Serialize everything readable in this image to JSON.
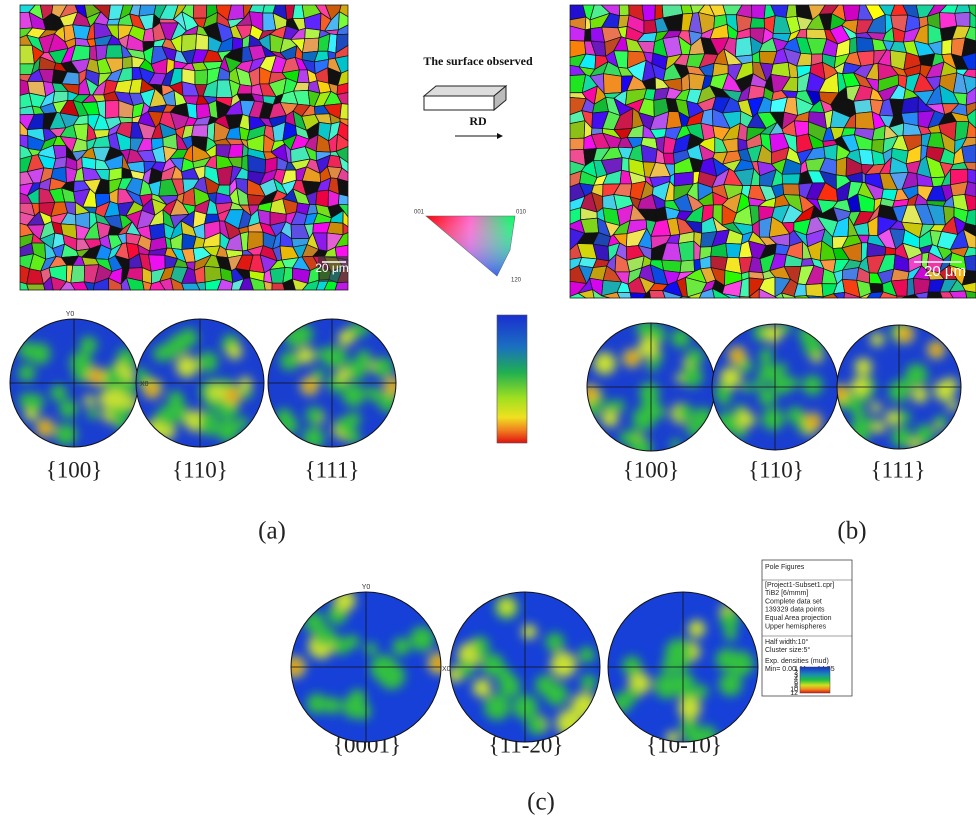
{
  "panel_a": {
    "surface_label": "The surface observed",
    "direction_label": "RD",
    "scale_bar": "20 μm",
    "ipf_corners": [
      "001",
      "010",
      "120"
    ],
    "pole_axis_labels": [
      "Y0",
      "X0"
    ],
    "pole_figures": [
      "{100}",
      "{110}",
      "{111}"
    ],
    "caption": "(a)"
  },
  "panel_b": {
    "scale_bar": "20 μm",
    "pole_figures": [
      "{100}",
      "{110}",
      "{111}"
    ],
    "caption": "(b)"
  },
  "panel_c": {
    "pole_axis_labels": [
      "Y0",
      "X0"
    ],
    "pole_figures": [
      "{0001}",
      "{11-20}",
      "{10-10}"
    ],
    "legend": {
      "title": "Pole Figures",
      "info": [
        "[Project1-Subset1.cpr]",
        "TiB2 [6/mmm]",
        "Complete data set",
        "139329 data points",
        "Equal Area projection",
        "Upper hemispheres"
      ],
      "settings": [
        "Half width:10°",
        "Cluster size:5°"
      ],
      "density": [
        "Exp. densities (mud)",
        "Min= 0.00, Max=14.55"
      ],
      "scale": [
        1,
        2,
        3,
        4,
        6,
        8,
        10,
        12
      ]
    },
    "caption": "(c)"
  }
}
